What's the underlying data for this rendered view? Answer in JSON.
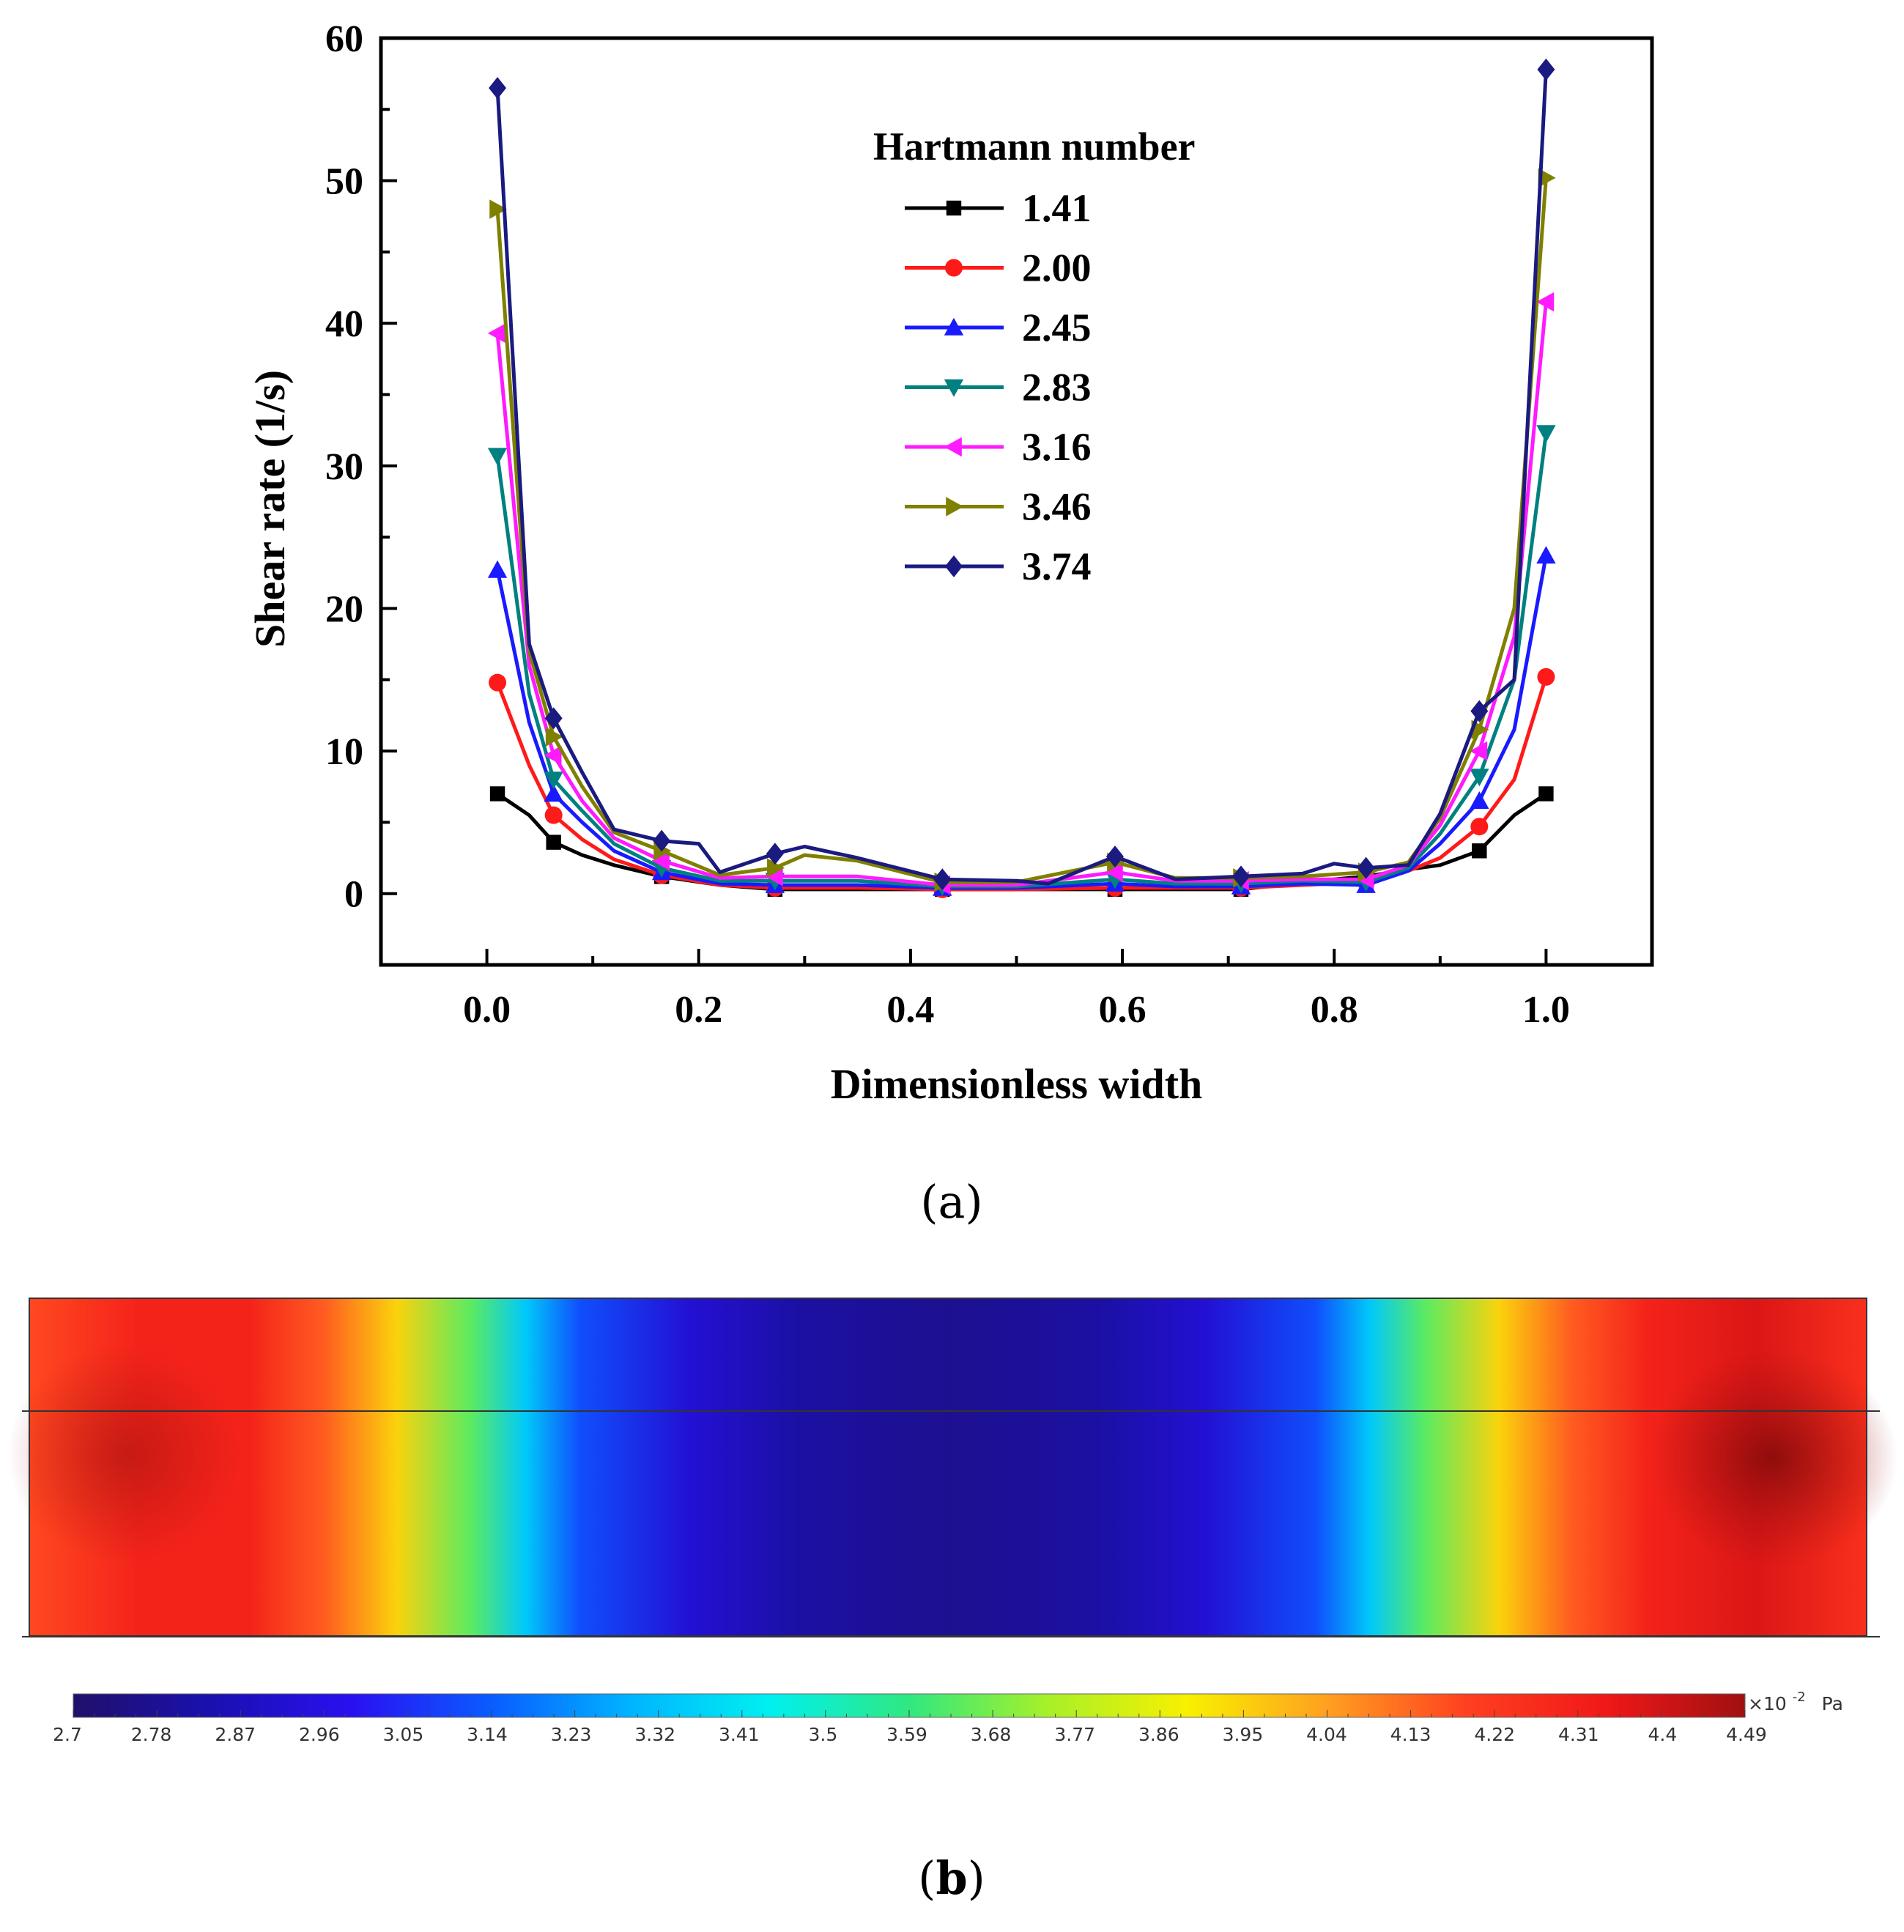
{
  "chart_data": [
    {
      "type": "line",
      "panel_label": "(a)",
      "xlabel": "Dimensionless width",
      "ylabel": "Shear rate (1/s)",
      "xlim": [
        -0.1,
        1.1
      ],
      "ylim": [
        -5,
        60
      ],
      "xticks": [
        0.0,
        0.2,
        0.4,
        0.6,
        0.8,
        1.0
      ],
      "xtick_labels": [
        "0.0",
        "0.2",
        "0.4",
        "0.6",
        "0.8",
        "1.0"
      ],
      "yticks": [
        0,
        10,
        20,
        30,
        40,
        50,
        60
      ],
      "ytick_labels": [
        "0",
        "10",
        "20",
        "30",
        "40",
        "50",
        "60"
      ],
      "legend_title": "Hartmann number",
      "legend_position": "top-center",
      "series": [
        {
          "name": "1.41",
          "color": "#000000",
          "marker": "square",
          "x": [
            0.01,
            0.04,
            0.063,
            0.09,
            0.12,
            0.165,
            0.22,
            0.272,
            0.35,
            0.43,
            0.5,
            0.593,
            0.65,
            0.712,
            0.77,
            0.83,
            0.87,
            0.9,
            0.937,
            0.97,
            1.0
          ],
          "y": [
            7.0,
            5.5,
            3.6,
            2.7,
            2.0,
            1.2,
            0.6,
            0.3,
            0.3,
            0.3,
            0.3,
            0.3,
            0.3,
            0.3,
            0.8,
            1.2,
            1.7,
            2.0,
            3.0,
            5.5,
            7.0
          ]
        },
        {
          "name": "2.00",
          "color": "#ff1a1a",
          "marker": "circle",
          "x": [
            0.01,
            0.04,
            0.063,
            0.09,
            0.12,
            0.165,
            0.22,
            0.272,
            0.35,
            0.43,
            0.5,
            0.593,
            0.65,
            0.712,
            0.77,
            0.83,
            0.87,
            0.9,
            0.937,
            0.97,
            1.0
          ],
          "y": [
            14.8,
            9.0,
            5.5,
            3.8,
            2.4,
            1.3,
            0.6,
            0.4,
            0.4,
            0.3,
            0.3,
            0.4,
            0.4,
            0.4,
            0.6,
            0.8,
            1.6,
            2.5,
            4.7,
            8.0,
            15.2
          ]
        },
        {
          "name": "2.45",
          "color": "#1a1aff",
          "marker": "triangle-up",
          "x": [
            0.01,
            0.04,
            0.063,
            0.09,
            0.12,
            0.165,
            0.22,
            0.272,
            0.35,
            0.43,
            0.5,
            0.593,
            0.65,
            0.712,
            0.77,
            0.83,
            0.87,
            0.9,
            0.937,
            0.97,
            1.0
          ],
          "y": [
            22.7,
            12.0,
            7.0,
            5.0,
            3.0,
            1.5,
            0.7,
            0.6,
            0.6,
            0.4,
            0.4,
            0.7,
            0.5,
            0.5,
            0.7,
            0.6,
            1.6,
            3.5,
            6.5,
            11.5,
            23.7
          ]
        },
        {
          "name": "2.83",
          "color": "#008080",
          "marker": "triangle-down",
          "x": [
            0.01,
            0.04,
            0.063,
            0.09,
            0.12,
            0.165,
            0.22,
            0.272,
            0.35,
            0.43,
            0.5,
            0.593,
            0.65,
            0.712,
            0.77,
            0.83,
            0.87,
            0.9,
            0.937,
            0.97,
            1.0
          ],
          "y": [
            30.7,
            14.0,
            8.0,
            5.8,
            3.5,
            1.8,
            0.9,
            0.9,
            0.9,
            0.5,
            0.5,
            1.0,
            0.7,
            0.7,
            0.9,
            0.8,
            1.8,
            4.2,
            8.2,
            15.0,
            32.3
          ]
        },
        {
          "name": "3.16",
          "color": "#ff1aff",
          "marker": "triangle-left",
          "x": [
            0.01,
            0.04,
            0.063,
            0.09,
            0.12,
            0.165,
            0.22,
            0.272,
            0.35,
            0.43,
            0.5,
            0.593,
            0.65,
            0.712,
            0.77,
            0.83,
            0.87,
            0.9,
            0.937,
            0.97,
            1.0
          ],
          "y": [
            39.3,
            16.0,
            9.7,
            6.5,
            3.9,
            2.3,
            1.1,
            1.2,
            1.2,
            0.6,
            0.6,
            1.5,
            0.9,
            0.9,
            1.0,
            1.0,
            2.0,
            4.8,
            10.0,
            18.0,
            41.5
          ]
        },
        {
          "name": "3.46",
          "color": "#808000",
          "marker": "triangle-right",
          "x": [
            0.01,
            0.04,
            0.063,
            0.09,
            0.12,
            0.165,
            0.22,
            0.272,
            0.3,
            0.35,
            0.43,
            0.5,
            0.593,
            0.65,
            0.712,
            0.77,
            0.83,
            0.87,
            0.9,
            0.937,
            0.97,
            1.0
          ],
          "y": [
            48.0,
            17.0,
            11.0,
            7.5,
            4.3,
            3.0,
            1.3,
            1.8,
            2.7,
            2.3,
            0.8,
            0.8,
            2.2,
            1.1,
            1.1,
            1.2,
            1.5,
            2.2,
            5.3,
            11.5,
            20.0,
            50.2
          ]
        },
        {
          "name": "3.74",
          "color": "#1a1a80",
          "marker": "diamond",
          "x": [
            0.01,
            0.04,
            0.063,
            0.09,
            0.12,
            0.165,
            0.2,
            0.22,
            0.272,
            0.3,
            0.35,
            0.43,
            0.5,
            0.53,
            0.593,
            0.65,
            0.712,
            0.77,
            0.8,
            0.83,
            0.87,
            0.9,
            0.937,
            0.97,
            1.0
          ],
          "y": [
            56.5,
            17.5,
            12.3,
            8.5,
            4.5,
            3.7,
            3.5,
            1.5,
            2.8,
            3.3,
            2.5,
            1.0,
            0.9,
            0.7,
            2.6,
            1.0,
            1.2,
            1.4,
            2.1,
            1.8,
            2.0,
            5.6,
            12.8,
            15.0,
            57.8
          ]
        }
      ]
    },
    {
      "type": "heatmap",
      "panel_label": "(b)",
      "colorbar": {
        "ticks": [
          "2.7",
          "2.78",
          "2.87",
          "2.96",
          "3.05",
          "3.14",
          "3.23",
          "3.32",
          "3.41",
          "3.5",
          "3.59",
          "3.68",
          "3.77",
          "3.86",
          "3.95",
          "4.04",
          "4.13",
          "4.22",
          "4.31",
          "4.4",
          "4.49"
        ],
        "range": [
          2.7,
          4.49
        ],
        "unit_multiplier": "×10",
        "unit_exponent": "-2",
        "unit": "Pa",
        "colormap": [
          "#20106a",
          "#1a10b0",
          "#2a10f0",
          "#0a5cff",
          "#00b4ff",
          "#00f0f0",
          "#30e880",
          "#a8f028",
          "#f8f000",
          "#ffa020",
          "#ff4020",
          "#f01818",
          "#a01010"
        ]
      },
      "field_profile": {
        "x": [
          0.0,
          0.06,
          0.12,
          0.16,
          0.2,
          0.24,
          0.27,
          0.3,
          0.36,
          0.42,
          0.5,
          0.58,
          0.64,
          0.7,
          0.73,
          0.76,
          0.8,
          0.84,
          0.88,
          0.94,
          1.0
        ],
        "value": [
          4.18,
          4.3,
          4.3,
          4.15,
          3.95,
          3.65,
          3.35,
          3.12,
          2.93,
          2.82,
          2.78,
          2.82,
          2.93,
          3.12,
          3.35,
          3.65,
          3.95,
          4.15,
          4.3,
          4.38,
          4.25
        ]
      }
    }
  ]
}
